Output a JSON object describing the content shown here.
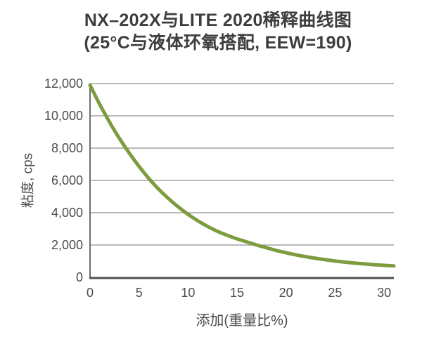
{
  "page": {
    "background": "#ffffff"
  },
  "colors": {
    "curve": "#7d9c3e",
    "gridline": "#8f8f8f",
    "axis_x": "#4f4f4f",
    "axis_y": "#6e6e6e",
    "tick_text": "#4c4c4c",
    "title_text": "#3d3d3d",
    "axis_title_text": "#4a4a4a"
  },
  "chart_data": {
    "type": "line",
    "title": "NX–202X与LITE 2020稀释曲线图",
    "subtitle": "(25°C与液体环氧搭配, EEW=190)",
    "xlabel": "添加(重量比%)",
    "ylabel": "粘度, cps",
    "xlim": [
      0,
      31
    ],
    "ylim": [
      0,
      12000
    ],
    "x_ticks": [
      0,
      5,
      10,
      15,
      20,
      25,
      30
    ],
    "y_ticks": [
      0,
      2000,
      4000,
      6000,
      8000,
      10000,
      12000
    ],
    "y_tick_labels": [
      "0",
      "2,000",
      "4,000",
      "6,000",
      "8,000",
      "10,000",
      "12,000"
    ],
    "grid": "horizontal",
    "legend": "none",
    "series": [
      {
        "name": "NX-202X与LITE 2020稀释曲线",
        "color": "#7d9c3e",
        "points": [
          [
            0,
            11900
          ],
          [
            1,
            10700
          ],
          [
            2,
            9600
          ],
          [
            3,
            8600
          ],
          [
            4,
            7700
          ],
          [
            5,
            6870
          ],
          [
            6,
            6120
          ],
          [
            7,
            5460
          ],
          [
            8,
            4880
          ],
          [
            9,
            4360
          ],
          [
            10,
            3900
          ],
          [
            11,
            3500
          ],
          [
            12,
            3150
          ],
          [
            13,
            2850
          ],
          [
            14,
            2600
          ],
          [
            15,
            2380
          ],
          [
            16,
            2190
          ],
          [
            17,
            2000
          ],
          [
            18,
            1830
          ],
          [
            19,
            1660
          ],
          [
            20,
            1520
          ],
          [
            21,
            1390
          ],
          [
            22,
            1280
          ],
          [
            23,
            1180
          ],
          [
            24,
            1090
          ],
          [
            25,
            1010
          ],
          [
            26,
            940
          ],
          [
            27,
            880
          ],
          [
            28,
            830
          ],
          [
            29,
            780
          ],
          [
            30,
            740
          ],
          [
            31,
            710
          ]
        ]
      }
    ]
  }
}
